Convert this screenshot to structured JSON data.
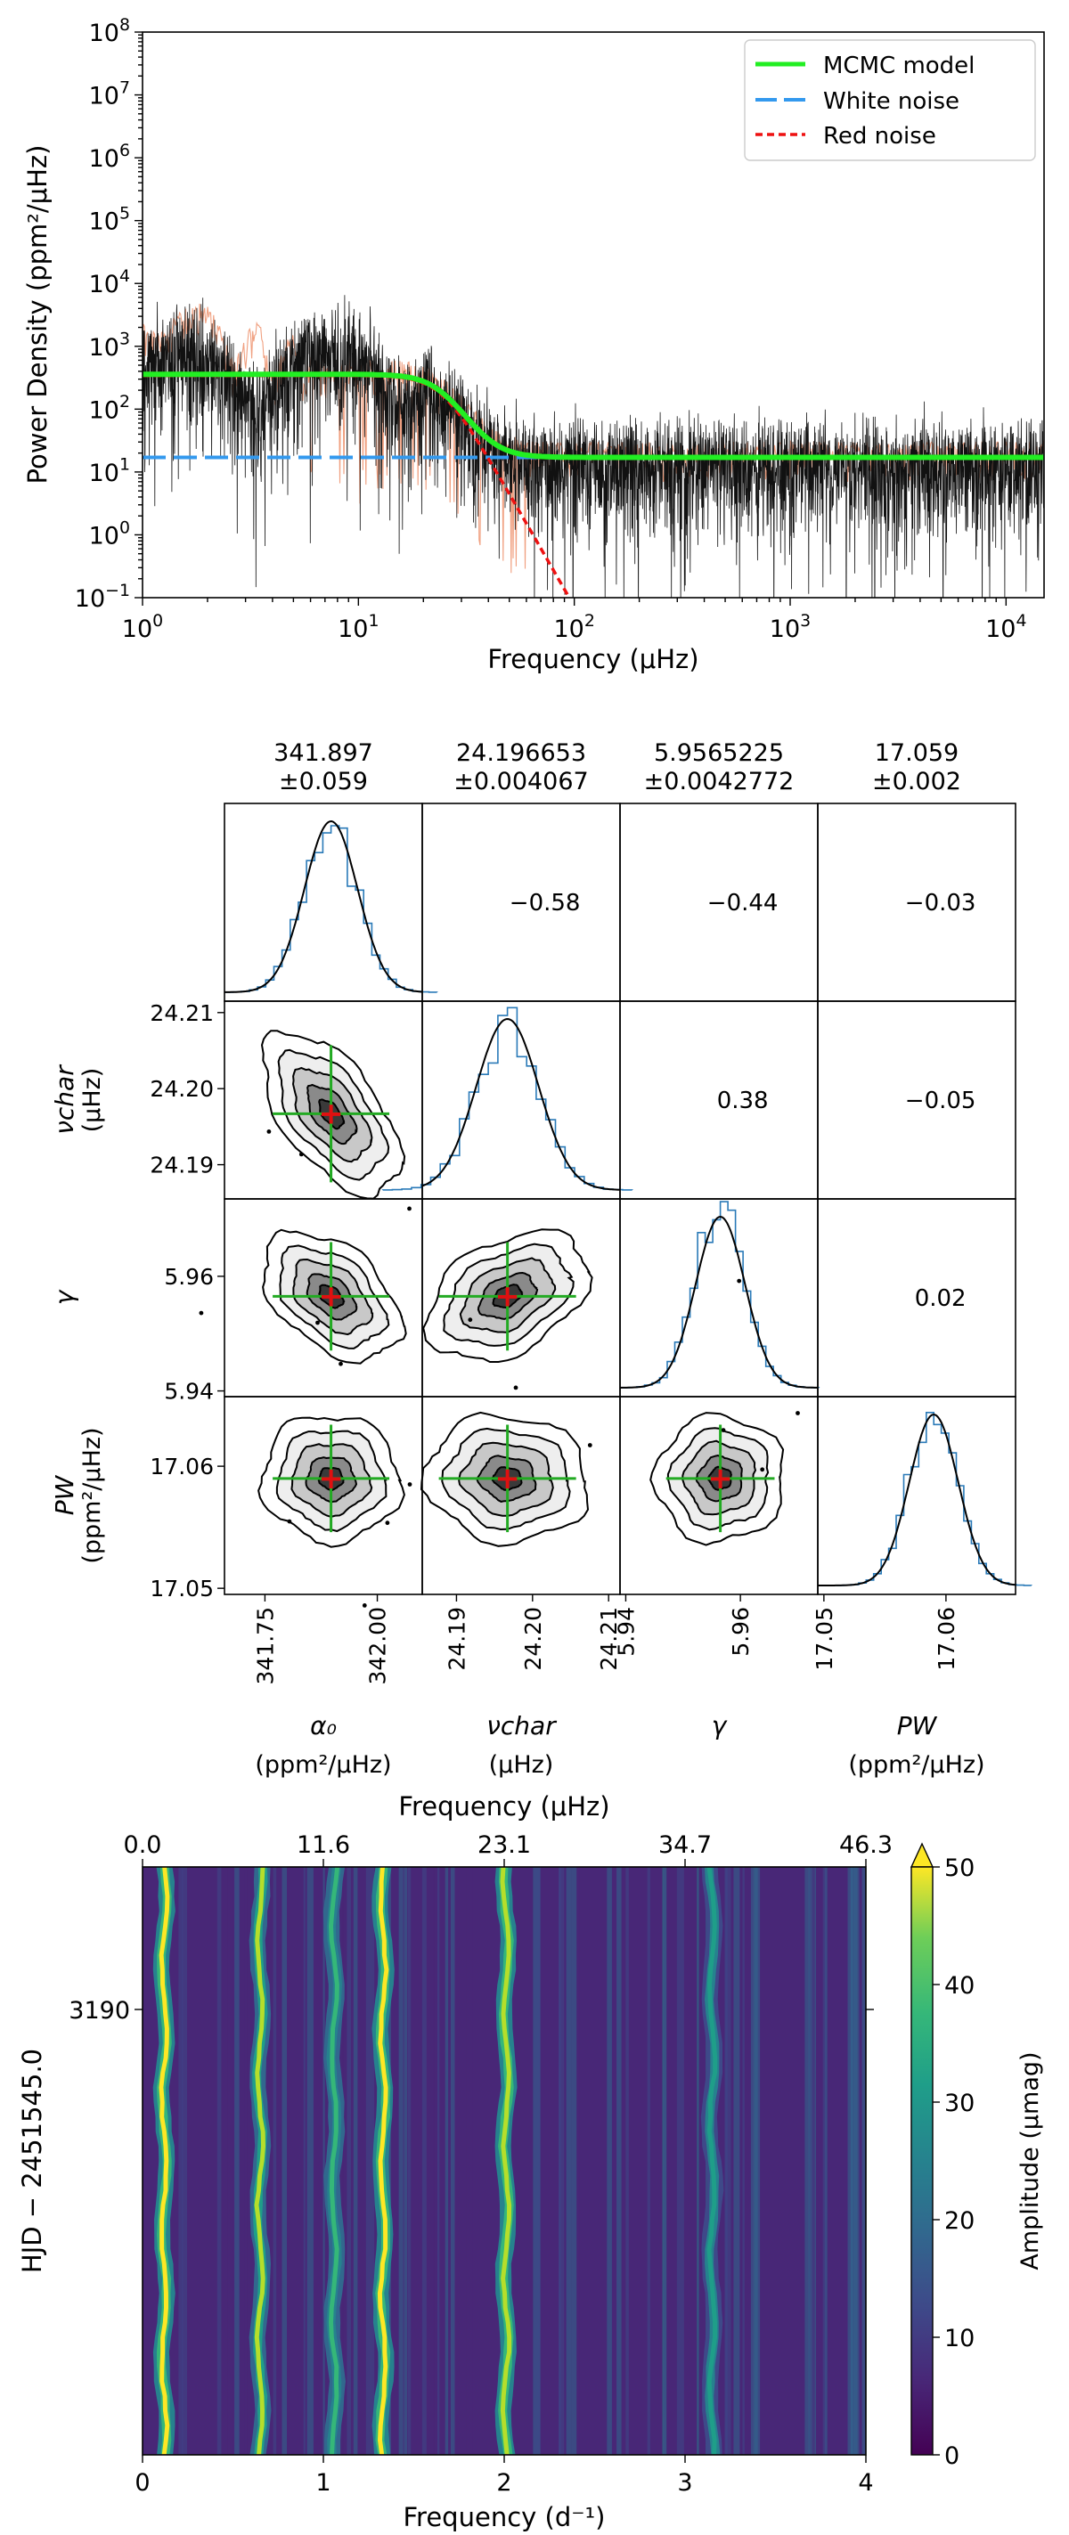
{
  "chart_data": [
    {
      "type": "line",
      "scale": "log-log",
      "xlabel": "Frequency (μHz)",
      "ylabel": "Power Density (ppm²/μHz)",
      "xlim": [
        1,
        15000
      ],
      "ylim": [
        0.1,
        100000000
      ],
      "x_ticks": [
        "10⁰",
        "10¹",
        "10²",
        "10³",
        "10⁴"
      ],
      "y_ticks": [
        "10⁻¹",
        "10⁰",
        "10¹",
        "10²",
        "10³",
        "10⁴",
        "10⁵",
        "10⁶",
        "10⁷",
        "10⁸"
      ],
      "legend": {
        "position": "top-right",
        "entries": [
          "MCMC model",
          "White noise",
          "Red noise"
        ]
      },
      "series": [
        {
          "name": "MCMC model",
          "color": "#22ee22",
          "style": "solid",
          "model": {
            "amplitude": 341.9,
            "nu_char": 24.2,
            "gamma": 5.96,
            "white": 17.06
          }
        },
        {
          "name": "White noise",
          "color": "#3399ee",
          "style": "dashed",
          "value": 17.06
        },
        {
          "name": "Red noise",
          "color": "#ee1111",
          "style": "dotted",
          "model": {
            "amplitude": 341.9,
            "nu_char": 24.2,
            "gamma": 5.96
          }
        },
        {
          "color": "#111111",
          "style": "solid"
        },
        {
          "color": "#f0a080",
          "style": "solid"
        }
      ]
    },
    {
      "type": "corner",
      "parameters": [
        {
          "header_value": "341.897",
          "header_err": "±0.059",
          "label": "α₀",
          "unit": "(ppm²/μHz)",
          "median": 341.897,
          "sigma": 0.059,
          "range": [
            341.66,
            342.1
          ],
          "ticks": [
            "341.75",
            "342.00"
          ],
          "tick_values": [
            341.75,
            342.0
          ]
        },
        {
          "header_value": "24.196653",
          "header_err": "±0.004067",
          "label": "νchar",
          "unit": "(μHz)",
          "median": 24.1967,
          "sigma": 0.0041,
          "range": [
            24.1855,
            24.2115
          ],
          "ticks": [
            "24.19",
            "24.20",
            "24.21"
          ],
          "tick_values": [
            24.19,
            24.2,
            24.21
          ]
        },
        {
          "header_value": "5.9565225",
          "header_err": "±0.0042772",
          "label": "γ",
          "unit": "",
          "median": 5.9565,
          "sigma": 0.0043,
          "range": [
            5.939,
            5.9735
          ],
          "ticks": [
            "5.94",
            "5.96"
          ],
          "tick_values": [
            5.94,
            5.96
          ]
        },
        {
          "header_value": "17.059",
          "header_err": "±0.002",
          "label": "PW",
          "unit": "(ppm²/μHz)",
          "median": 17.059,
          "sigma": 0.002,
          "range": [
            17.0495,
            17.0657
          ],
          "ticks": [
            "17.05",
            "17.06"
          ],
          "tick_values": [
            17.05,
            17.06
          ]
        }
      ],
      "correlations": [
        {
          "row": 0,
          "col": 1,
          "label": "−0.58",
          "value": -0.58
        },
        {
          "row": 0,
          "col": 2,
          "label": "−0.44",
          "value": -0.44
        },
        {
          "row": 0,
          "col": 3,
          "label": "−0.03",
          "value": -0.03
        },
        {
          "row": 1,
          "col": 2,
          "label": "0.38",
          "value": 0.38
        },
        {
          "row": 1,
          "col": 3,
          "label": "−0.05",
          "value": -0.05
        },
        {
          "row": 2,
          "col": 3,
          "label": "0.02",
          "value": 0.02
        }
      ],
      "row_labels": [
        {
          "label": "νchar",
          "unit": "(μHz)",
          "ticks": [
            "24.21",
            "24.20",
            "24.19"
          ],
          "tick_values": [
            24.21,
            24.2,
            24.19
          ]
        },
        {
          "label": "γ",
          "unit": "",
          "ticks": [
            "5.96",
            "5.94"
          ],
          "tick_values": [
            5.96,
            5.94
          ]
        },
        {
          "label": "PW",
          "unit": "(ppm²/μHz)",
          "ticks": [
            "17.06",
            "17.05"
          ],
          "tick_values": [
            17.06,
            17.05
          ]
        }
      ]
    },
    {
      "type": "heatmap",
      "xlabel": "Frequency (d⁻¹)",
      "xlabel_top": "Frequency (μHz)",
      "ylabel": "HJD − 2451545.0",
      "xlim": [
        0,
        4
      ],
      "x_ticks": [
        "0",
        "1",
        "2",
        "3",
        "4"
      ],
      "x_ticks_top": [
        "0.0",
        "11.6",
        "23.1",
        "34.7",
        "46.3"
      ],
      "y_ticks": [
        "3190"
      ],
      "colorbar": {
        "label": "Amplitude (μmag)",
        "ticks": [
          "0",
          "10",
          "20",
          "30",
          "40",
          "50"
        ],
        "range": [
          0,
          50
        ],
        "colormap": "viridis",
        "extend": "max"
      },
      "peaks": [
        {
          "frequency": 0.12,
          "amplitude": 50
        },
        {
          "frequency": 0.65,
          "amplitude": 42
        },
        {
          "frequency": 1.06,
          "amplitude": 34
        },
        {
          "frequency": 1.33,
          "amplitude": 50
        },
        {
          "frequency": 2.01,
          "amplitude": 46
        },
        {
          "frequency": 3.15,
          "amplitude": 28
        }
      ]
    }
  ]
}
